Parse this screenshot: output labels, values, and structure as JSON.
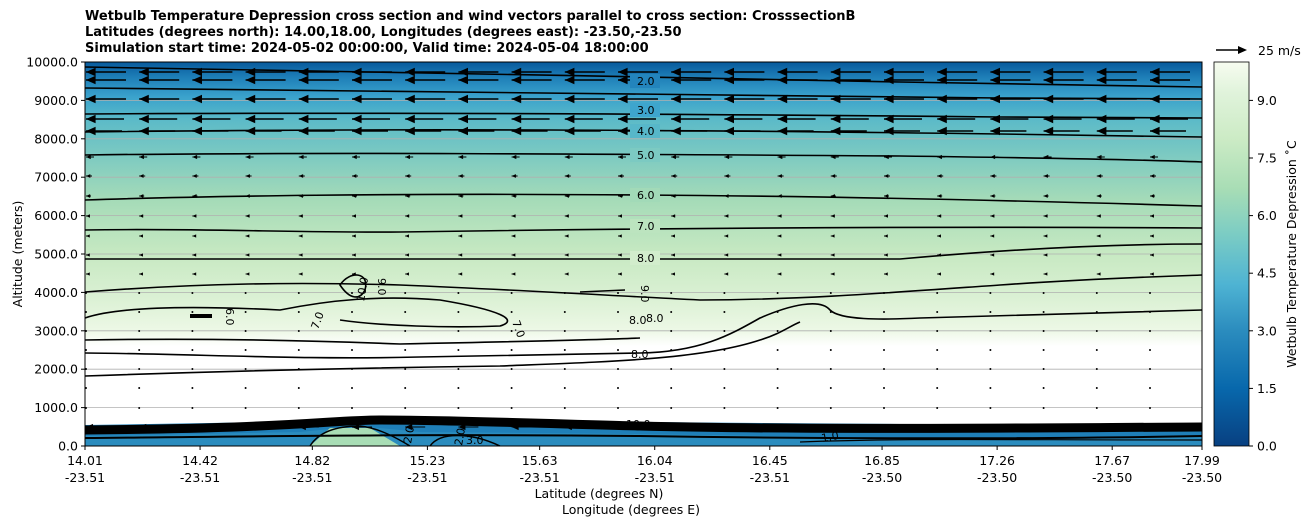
{
  "title_lines": [
    "Wetbulb Temperature Depression cross section and wind vectors parallel to cross section: CrosssectionB",
    "Latitudes (degrees north): 14.00,18.00, Longitudes (degrees east): -23.50,-23.50",
    "Simulation start time: 2024-05-02 00:00:00, Valid time: 2024-05-04 18:00:00"
  ],
  "chart_data": {
    "type": "heatmap",
    "xlabel_lat": "Latitude (degrees N)",
    "xlabel_lon": "Longitude (degrees E)",
    "ylabel": "Altitude (meters)",
    "xlim": [
      14.01,
      17.99
    ],
    "ylim": [
      0,
      10000
    ],
    "x_ticks": [
      {
        "lat": "14.01",
        "lon": "-23.51"
      },
      {
        "lat": "14.42",
        "lon": "-23.51"
      },
      {
        "lat": "14.82",
        "lon": "-23.51"
      },
      {
        "lat": "15.23",
        "lon": "-23.51"
      },
      {
        "lat": "15.63",
        "lon": "-23.51"
      },
      {
        "lat": "16.04",
        "lon": "-23.51"
      },
      {
        "lat": "16.45",
        "lon": "-23.51"
      },
      {
        "lat": "16.85",
        "lon": "-23.50"
      },
      {
        "lat": "17.26",
        "lon": "-23.50"
      },
      {
        "lat": "17.67",
        "lon": "-23.50"
      },
      {
        "lat": "17.99",
        "lon": "-23.50"
      }
    ],
    "y_ticks": [
      "0.0",
      "1000.0",
      "2000.0",
      "3000.0",
      "4000.0",
      "5000.0",
      "6000.0",
      "7000.0",
      "8000.0",
      "9000.0",
      "10000.0"
    ],
    "grid": "horizontal",
    "colorbar": {
      "label": "Wetbulb Temperature Depression ˚C",
      "ticks": [
        "0.0",
        "1.5",
        "3.0",
        "4.5",
        "6.0",
        "7.5",
        "9.0"
      ],
      "range": [
        0,
        10
      ]
    },
    "contour_labels": [
      "2.0",
      "3.0",
      "4.0",
      "5.0",
      "6.0",
      "7.0",
      "8.0",
      "9.0",
      "8.0",
      "8.0",
      "8.0",
      "10.0",
      "9.0",
      "7.0",
      "6.0",
      "7.0",
      "10.0",
      "2.0",
      "3.0",
      "2.0",
      "1.0"
    ],
    "wind_reference": "25 m/s"
  }
}
